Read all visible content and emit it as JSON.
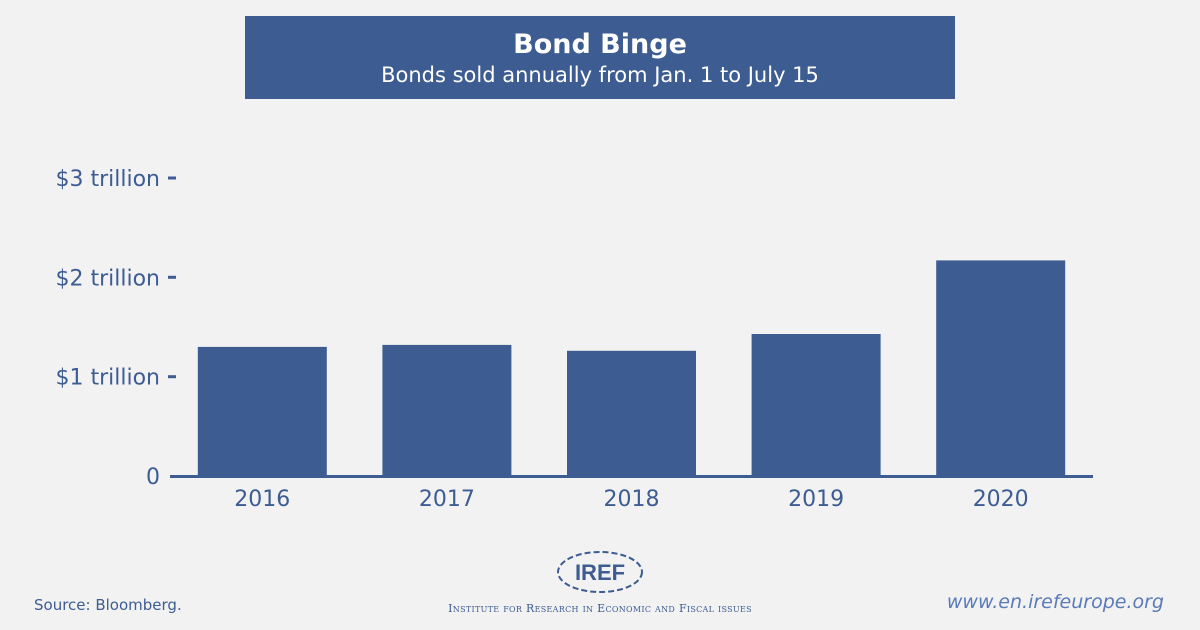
{
  "header": {
    "title": "Bond Binge",
    "subtitle": "Bonds sold annually from Jan. 1 to July 15"
  },
  "chart_data": {
    "type": "bar",
    "title": "Bond Binge",
    "subtitle": "Bonds sold annually from Jan. 1 to July 15",
    "categories": [
      "2016",
      "2017",
      "2018",
      "2019",
      "2020"
    ],
    "values": [
      1.3,
      1.32,
      1.26,
      1.43,
      2.17
    ],
    "unit": "trillion USD",
    "ylim": [
      0,
      3
    ],
    "yticks": [
      {
        "value": 0,
        "label": "0"
      },
      {
        "value": 1,
        "label": "$1 trillion"
      },
      {
        "value": 2,
        "label": "$2 trillion"
      },
      {
        "value": 3,
        "label": "$3 trillion"
      }
    ],
    "xlabel": "",
    "ylabel": "",
    "grid": false,
    "legend": "none",
    "bar_color": "#3d5c92",
    "axis_color": "#3d5c92"
  },
  "footer": {
    "source": "Source: Bloomberg.",
    "website": "www.en.irefeurope.org",
    "logo_text": "IREF",
    "institute": "Institute for Research in Economic and Fiscal issues"
  },
  "colors": {
    "background": "#f2f2f2",
    "primary": "#3d5c92",
    "website": "#5a7ab8"
  }
}
